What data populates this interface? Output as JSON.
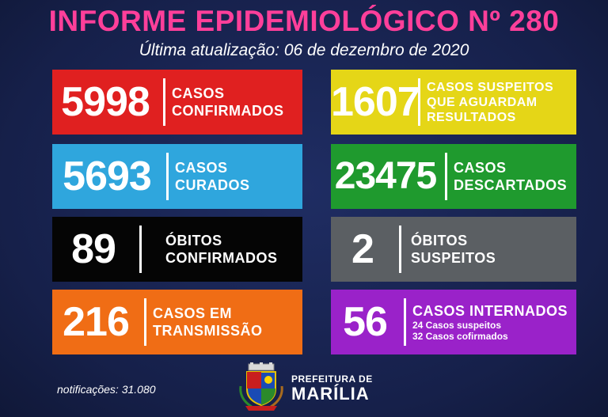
{
  "header": {
    "title": "INFORME EPIDEMIOLÓGICO Nº 280",
    "subtitle": "Última atualização: 06 de dezembro de 2020"
  },
  "cards": {
    "confirmados": {
      "value": "5998",
      "line1": "CASOS",
      "line2": "CONFIRMADOS",
      "color": "#e02020"
    },
    "suspeitos": {
      "value": "1607",
      "line1": "CASOS SUSPEITOS",
      "line2": "QUE AGUARDAM",
      "line3": "RESULTADOS",
      "color": "#e5d617"
    },
    "curados": {
      "value": "5693",
      "line1": "CASOS",
      "line2": "CURADOS",
      "color": "#2fa6dd"
    },
    "descartados": {
      "value": "23475",
      "line1": "CASOS",
      "line2": "DESCARTADOS",
      "color": "#1f9a2e"
    },
    "obitos_confirmados": {
      "value": "89",
      "line1": "ÓBITOS",
      "line2": "CONFIRMADOS",
      "color": "#050505"
    },
    "obitos_suspeitos": {
      "value": "2",
      "line1": "ÓBITOS",
      "line2": "SUSPEITOS",
      "color": "#5b5f63"
    },
    "transmissao": {
      "value": "216",
      "line1": "CASOS EM",
      "line2": "TRANSMISSÃO",
      "color": "#f06d15"
    },
    "internados": {
      "value": "56",
      "line1": "CASOS INTERNADOS",
      "detail1": "24 Casos suspeitos",
      "detail2": "32 Casos cofirmados",
      "color": "#9a22c9"
    }
  },
  "footer": {
    "notificacoes": "notificações: 31.080",
    "prefeitura_line1": "PREFEITURA DE",
    "prefeitura_line2": "MARÍLIA",
    "logo_icon": "coat-of-arms-icon"
  }
}
